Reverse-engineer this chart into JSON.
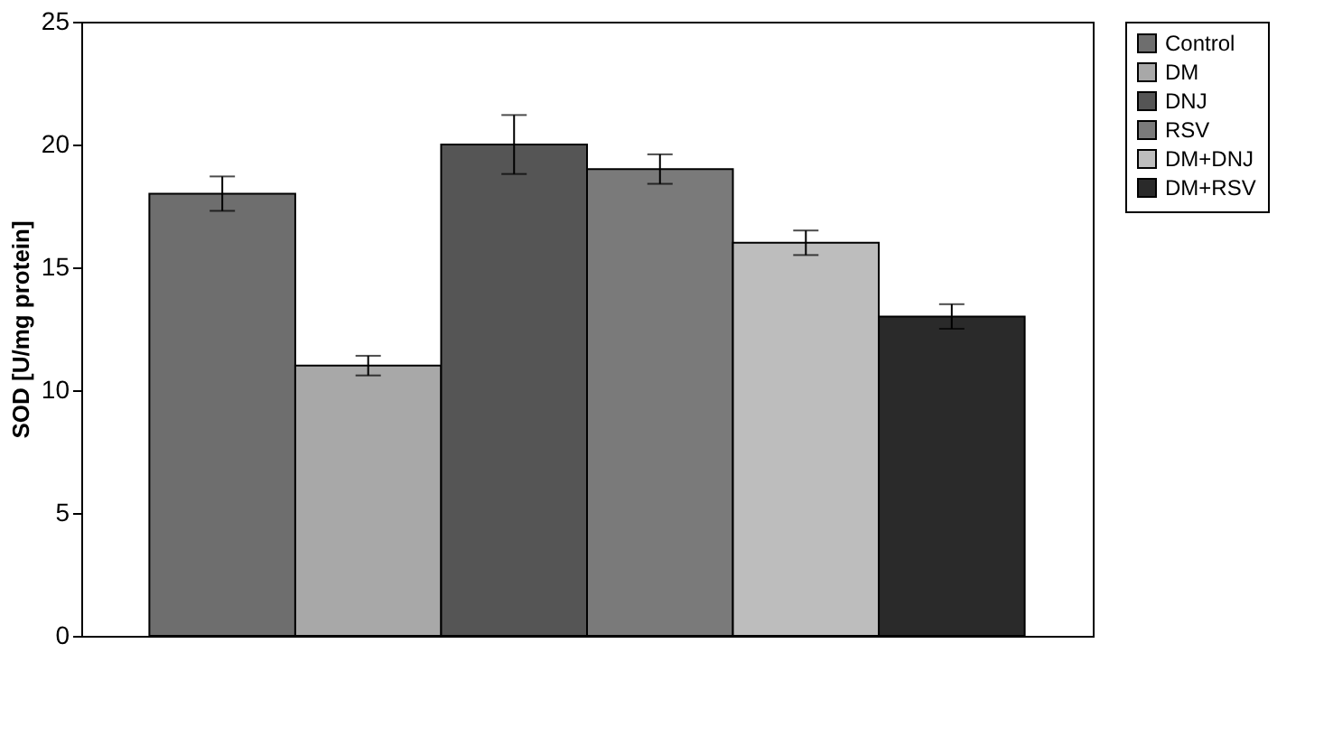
{
  "chart_data": {
    "type": "bar",
    "ylabel": "SOD [U/mg protein]",
    "categories": [
      null
    ],
    "series": [
      {
        "name": "Control",
        "color": "#6e6e6e",
        "values": [
          18
        ],
        "errors": [
          0.7
        ]
      },
      {
        "name": "DM",
        "color": "#a8a8a8",
        "values": [
          11
        ],
        "errors": [
          0.4
        ]
      },
      {
        "name": "DNJ",
        "color": "#555555",
        "values": [
          20
        ],
        "errors": [
          1.2
        ]
      },
      {
        "name": "RSV",
        "color": "#7a7a7a",
        "values": [
          19
        ],
        "errors": [
          0.6
        ]
      },
      {
        "name": "DM+DNJ",
        "color": "#bdbdbd",
        "values": [
          16
        ],
        "errors": [
          0.5
        ]
      },
      {
        "name": "DM+RSV",
        "color": "#2a2a2a",
        "values": [
          13
        ],
        "errors": [
          0.5
        ]
      }
    ],
    "ylim": [
      0,
      25
    ],
    "yticks": [
      0,
      5,
      10,
      15,
      20,
      25
    ],
    "grid": false,
    "legend": "right",
    "tick_labels": "y"
  }
}
